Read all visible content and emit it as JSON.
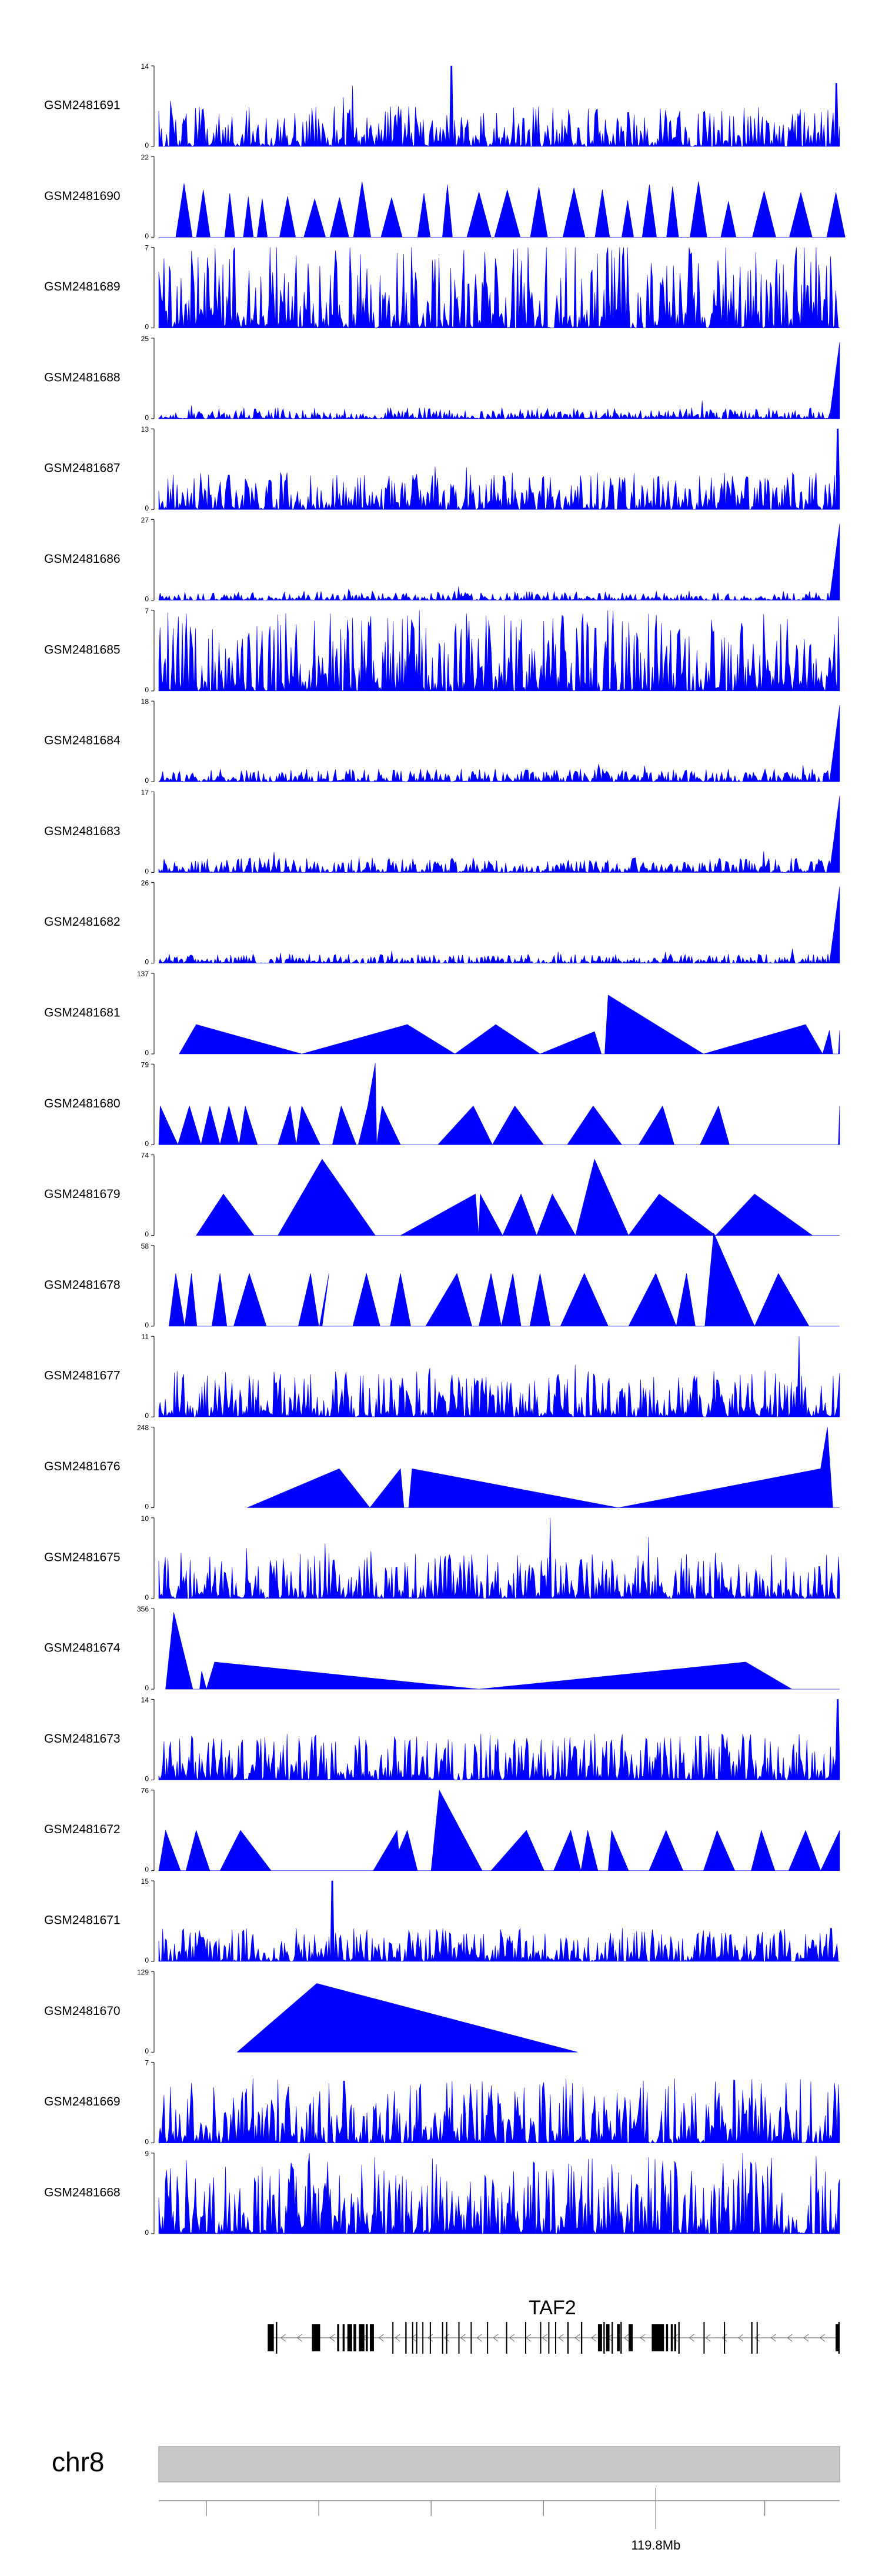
{
  "chart_data": {
    "type": "area",
    "title": "",
    "fill_color": "#0000ff",
    "x_domain": [
      0,
      1000
    ],
    "tracks": [
      {
        "sample": "GSM2481691",
        "ymin": 0,
        "ymax": 14,
        "profile": "dense",
        "seed": 11,
        "base": 0.22,
        "spikes": [
          [
            430,
            14
          ],
          [
            995,
            11
          ]
        ]
      },
      {
        "sample": "GSM2481690",
        "ymin": 0,
        "ymax": 22,
        "profile": "triangles",
        "seed": 12,
        "spikes": [
          [
            315,
            22
          ]
        ]
      },
      {
        "sample": "GSM2481689",
        "ymin": 0,
        "ymax": 7,
        "profile": "dense",
        "seed": 13,
        "base": 0.45,
        "spikes": []
      },
      {
        "sample": "GSM2481688",
        "ymin": 0,
        "ymax": 25,
        "profile": "lowramp",
        "seed": 14,
        "base": 0.06,
        "spikes": []
      },
      {
        "sample": "GSM2481687",
        "ymin": 0,
        "ymax": 13,
        "profile": "dense",
        "seed": 15,
        "base": 0.2,
        "spikes": [
          [
            997,
            13
          ]
        ]
      },
      {
        "sample": "GSM2481686",
        "ymin": 0,
        "ymax": 27,
        "profile": "lowramp",
        "seed": 16,
        "base": 0.05,
        "spikes": []
      },
      {
        "sample": "GSM2481685",
        "ymin": 0,
        "ymax": 7,
        "profile": "dense",
        "seed": 17,
        "base": 0.42,
        "spikes": []
      },
      {
        "sample": "GSM2481684",
        "ymin": 0,
        "ymax": 18,
        "profile": "lowramp",
        "seed": 18,
        "base": 0.07,
        "spikes": []
      },
      {
        "sample": "GSM2481683",
        "ymin": 0,
        "ymax": 17,
        "profile": "lowramp",
        "seed": 19,
        "base": 0.08,
        "spikes": []
      },
      {
        "sample": "GSM2481682",
        "ymin": 0,
        "ymax": 26,
        "profile": "lowramp",
        "seed": 20,
        "base": 0.05,
        "spikes": []
      },
      {
        "sample": "GSM2481681",
        "ymin": 0,
        "ymax": 137,
        "profile": "poly",
        "points": [
          [
            30,
            0
          ],
          [
            55,
            50
          ],
          [
            210,
            0
          ],
          [
            365,
            50
          ],
          [
            435,
            0
          ],
          [
            495,
            50
          ],
          [
            560,
            0
          ],
          [
            640,
            38
          ],
          [
            650,
            0
          ],
          [
            655,
            0
          ],
          [
            660,
            100
          ],
          [
            800,
            0
          ],
          [
            950,
            50
          ],
          [
            975,
            0
          ],
          [
            985,
            40
          ],
          [
            990,
            0
          ],
          [
            998,
            0
          ],
          [
            1000,
            40
          ],
          [
            1000,
            0
          ]
        ]
      },
      {
        "sample": "GSM2481680",
        "ymin": 0,
        "ymax": 79,
        "profile": "poly",
        "points": [
          [
            0,
            0
          ],
          [
            2,
            38
          ],
          [
            28,
            0
          ],
          [
            45,
            38
          ],
          [
            62,
            0
          ],
          [
            75,
            38
          ],
          [
            90,
            0
          ],
          [
            103,
            38
          ],
          [
            118,
            0
          ],
          [
            127,
            38
          ],
          [
            145,
            0
          ],
          [
            175,
            0
          ],
          [
            193,
            38
          ],
          [
            202,
            0
          ],
          [
            210,
            38
          ],
          [
            237,
            0
          ],
          [
            255,
            0
          ],
          [
            268,
            38
          ],
          [
            290,
            0
          ],
          [
            293,
            0
          ],
          [
            307,
            38
          ],
          [
            318,
            80
          ],
          [
            320,
            0
          ],
          [
            328,
            38
          ],
          [
            355,
            0
          ],
          [
            370,
            0
          ],
          [
            410,
            0
          ],
          [
            462,
            38
          ],
          [
            490,
            0
          ],
          [
            523,
            38
          ],
          [
            565,
            0
          ],
          [
            600,
            0
          ],
          [
            638,
            38
          ],
          [
            680,
            0
          ],
          [
            705,
            0
          ],
          [
            740,
            38
          ],
          [
            757,
            0
          ],
          [
            795,
            0
          ],
          [
            822,
            38
          ],
          [
            838,
            0
          ],
          [
            850,
            0
          ],
          [
            900,
            0
          ],
          [
            998,
            0
          ],
          [
            1000,
            38
          ],
          [
            1000,
            0
          ]
        ]
      },
      {
        "sample": "GSM2481679",
        "ymin": 0,
        "ymax": 74,
        "profile": "poly",
        "points": [
          [
            55,
            0
          ],
          [
            95,
            38
          ],
          [
            140,
            0
          ],
          [
            175,
            0
          ],
          [
            240,
            70
          ],
          [
            318,
            0
          ],
          [
            355,
            0
          ],
          [
            465,
            38
          ],
          [
            470,
            0
          ],
          [
            472,
            38
          ],
          [
            505,
            0
          ],
          [
            532,
            38
          ],
          [
            555,
            0
          ],
          [
            578,
            38
          ],
          [
            612,
            0
          ],
          [
            640,
            70
          ],
          [
            690,
            0
          ],
          [
            735,
            38
          ],
          [
            818,
            0
          ],
          [
            875,
            38
          ],
          [
            960,
            0
          ],
          [
            1000,
            0
          ]
        ]
      },
      {
        "sample": "GSM2481678",
        "ymin": 0,
        "ymax": 58,
        "profile": "poly",
        "points": [
          [
            15,
            0
          ],
          [
            25,
            38
          ],
          [
            38,
            0
          ],
          [
            48,
            38
          ],
          [
            56,
            0
          ],
          [
            78,
            0
          ],
          [
            90,
            38
          ],
          [
            100,
            0
          ],
          [
            110,
            0
          ],
          [
            133,
            38
          ],
          [
            158,
            0
          ],
          [
            205,
            0
          ],
          [
            223,
            38
          ],
          [
            235,
            0
          ],
          [
            240,
            0
          ],
          [
            250,
            38
          ],
          [
            236,
            0
          ],
          [
            245,
            0
          ],
          [
            285,
            0
          ],
          [
            305,
            38
          ],
          [
            325,
            0
          ],
          [
            340,
            0
          ],
          [
            355,
            38
          ],
          [
            370,
            0
          ],
          [
            392,
            0
          ],
          [
            438,
            38
          ],
          [
            460,
            0
          ],
          [
            470,
            0
          ],
          [
            488,
            38
          ],
          [
            503,
            0
          ],
          [
            520,
            38
          ],
          [
            532,
            0
          ],
          [
            545,
            0
          ],
          [
            560,
            38
          ],
          [
            575,
            0
          ],
          [
            590,
            0
          ],
          [
            625,
            38
          ],
          [
            660,
            0
          ],
          [
            690,
            0
          ],
          [
            730,
            38
          ],
          [
            760,
            0
          ],
          [
            775,
            38
          ],
          [
            788,
            0
          ],
          [
            800,
            0
          ],
          [
            802,
            0
          ],
          [
            815,
            67
          ],
          [
            875,
            0
          ],
          [
            910,
            38
          ],
          [
            955,
            0
          ],
          [
            1000,
            0
          ]
        ]
      },
      {
        "sample": "GSM2481677",
        "ymin": 0,
        "ymax": 11,
        "profile": "dense",
        "seed": 21,
        "base": 0.25,
        "spikes": [
          [
            940,
            11
          ],
          [
            1000,
            6
          ]
        ]
      },
      {
        "sample": "GSM2481676",
        "ymin": 0,
        "ymax": 248,
        "profile": "poly",
        "points": [
          [
            130,
            0
          ],
          [
            265,
            120
          ],
          [
            310,
            0
          ],
          [
            355,
            120
          ],
          [
            360,
            0
          ],
          [
            367,
            0
          ],
          [
            372,
            120
          ],
          [
            675,
            0
          ],
          [
            972,
            120
          ],
          [
            982,
            248
          ],
          [
            990,
            0
          ],
          [
            1000,
            0
          ]
        ]
      },
      {
        "sample": "GSM2481675",
        "ymin": 0,
        "ymax": 10,
        "profile": "dense",
        "seed": 22,
        "base": 0.25,
        "spikes": [
          [
            575,
            10
          ]
        ]
      },
      {
        "sample": "GSM2481674",
        "ymin": 0,
        "ymax": 356,
        "profile": "poly",
        "points": [
          [
            10,
            0
          ],
          [
            22,
            340
          ],
          [
            50,
            0
          ],
          [
            60,
            0
          ],
          [
            63,
            80
          ],
          [
            70,
            0
          ],
          [
            82,
            120
          ],
          [
            470,
            0
          ],
          [
            862,
            120
          ],
          [
            930,
            0
          ],
          [
            1000,
            0
          ]
        ]
      },
      {
        "sample": "GSM2481673",
        "ymin": 0,
        "ymax": 14,
        "profile": "dense",
        "seed": 23,
        "base": 0.25,
        "spikes": [
          [
            997,
            14
          ]
        ]
      },
      {
        "sample": "GSM2481672",
        "ymin": 0,
        "ymax": 76,
        "profile": "poly",
        "points": [
          [
            0,
            0
          ],
          [
            10,
            38
          ],
          [
            32,
            0
          ],
          [
            40,
            0
          ],
          [
            55,
            38
          ],
          [
            75,
            0
          ],
          [
            90,
            0
          ],
          [
            120,
            38
          ],
          [
            165,
            0
          ],
          [
            250,
            0
          ],
          [
            315,
            0
          ],
          [
            350,
            38
          ],
          [
            355,
            0
          ],
          [
            340,
            0
          ],
          [
            365,
            38
          ],
          [
            380,
            0
          ],
          [
            400,
            0
          ],
          [
            412,
            76
          ],
          [
            475,
            0
          ],
          [
            488,
            0
          ],
          [
            540,
            38
          ],
          [
            566,
            0
          ],
          [
            580,
            0
          ],
          [
            605,
            38
          ],
          [
            620,
            0
          ],
          [
            630,
            38
          ],
          [
            645,
            0
          ],
          [
            660,
            0
          ],
          [
            665,
            38
          ],
          [
            690,
            0
          ],
          [
            720,
            0
          ],
          [
            745,
            38
          ],
          [
            770,
            0
          ],
          [
            800,
            0
          ],
          [
            820,
            38
          ],
          [
            846,
            0
          ],
          [
            870,
            0
          ],
          [
            885,
            38
          ],
          [
            905,
            0
          ],
          [
            925,
            0
          ],
          [
            950,
            38
          ],
          [
            972,
            0
          ],
          [
            1000,
            38
          ],
          [
            1000,
            0
          ]
        ]
      },
      {
        "sample": "GSM2481671",
        "ymin": 0,
        "ymax": 15,
        "profile": "dense",
        "seed": 24,
        "base": 0.18,
        "spikes": [
          [
            255,
            15
          ]
        ]
      },
      {
        "sample": "GSM2481670",
        "ymin": 0,
        "ymax": 129,
        "profile": "poly",
        "points": [
          [
            115,
            0
          ],
          [
            232,
            110
          ],
          [
            615,
            0
          ]
        ]
      },
      {
        "sample": "GSM2481669",
        "ymin": 0,
        "ymax": 7,
        "profile": "dense",
        "seed": 25,
        "base": 0.35,
        "spikes": []
      },
      {
        "sample": "GSM2481668",
        "ymin": 0,
        "ymax": 9,
        "profile": "dense",
        "seed": 26,
        "base": 0.42,
        "spikes": []
      }
    ],
    "gene": {
      "name": "TAF2",
      "strand": "-",
      "start": 160,
      "end": 1000,
      "blocks": [
        [
          160,
          8
        ],
        [
          166,
          3
        ],
        [
          172,
          2
        ],
        [
          225,
          12
        ],
        [
          262,
          3
        ],
        [
          270,
          3
        ],
        [
          277,
          7
        ],
        [
          286,
          4
        ],
        [
          294,
          8
        ],
        [
          304,
          3
        ],
        [
          310,
          6
        ],
        [
          343,
          1
        ],
        [
          362,
          2
        ],
        [
          372,
          1
        ],
        [
          378,
          1
        ],
        [
          387,
          1
        ],
        [
          398,
          1
        ],
        [
          416,
          1
        ],
        [
          422,
          1
        ],
        [
          440,
          1
        ],
        [
          458,
          1
        ],
        [
          482,
          1
        ],
        [
          510,
          1
        ],
        [
          538,
          1
        ],
        [
          560,
          1
        ],
        [
          572,
          1
        ],
        [
          582,
          1
        ],
        [
          600,
          2
        ],
        [
          620,
          2
        ],
        [
          645,
          6
        ],
        [
          653,
          2
        ],
        [
          657,
          5
        ],
        [
          665,
          2
        ],
        [
          673,
          4
        ],
        [
          678,
          2
        ],
        [
          690,
          6
        ],
        [
          724,
          18
        ],
        [
          745,
          3
        ],
        [
          752,
          3
        ],
        [
          757,
          3
        ],
        [
          763,
          2
        ],
        [
          800,
          1
        ],
        [
          830,
          1
        ],
        [
          870,
          2
        ],
        [
          878,
          1
        ],
        [
          994,
          6
        ],
        [
          998,
          2
        ]
      ]
    },
    "chromosome": {
      "label": "chr8",
      "major_tick_label": "119.8Mb",
      "major_tick_at": 730,
      "minor_ticks": [
        70,
        235,
        400,
        565,
        890
      ]
    }
  }
}
